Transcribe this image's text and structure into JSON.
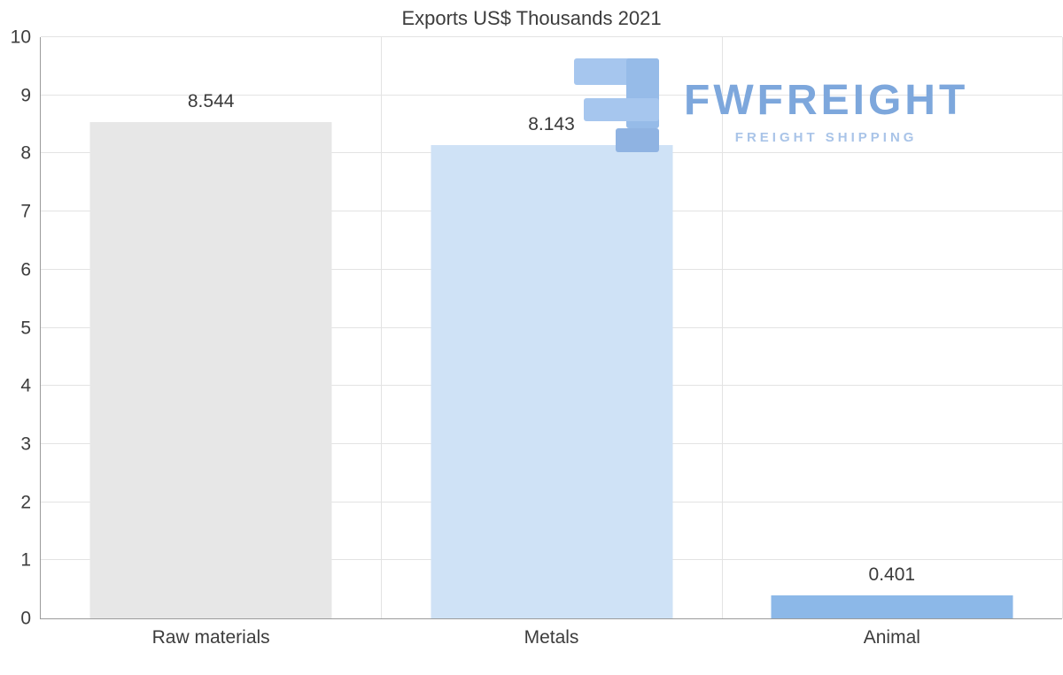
{
  "chart_data": {
    "type": "bar",
    "title": "Exports US$ Thousands 2021",
    "categories": [
      "Raw materials",
      "Metals",
      "Animal"
    ],
    "values": [
      8.544,
      8.143,
      0.401
    ],
    "value_labels": [
      "8.544",
      "8.143",
      "0.401"
    ],
    "bar_colors": [
      "#e7e7e7",
      "#cfe2f6",
      "#8cb8e8"
    ],
    "xlabel": "",
    "ylabel": "",
    "ylim": [
      0,
      10
    ],
    "yticks": [
      0,
      1,
      2,
      3,
      4,
      5,
      6,
      7,
      8,
      9,
      10
    ],
    "grid": true,
    "legend": false
  },
  "watermark": {
    "brand": "FWFREIGHT",
    "tagline": "FREIGHT SHIPPING",
    "logo_icon": "f-logo-icon",
    "brand_color": "#7da7dc",
    "tagline_color": "#a9c4e8",
    "logo_color_light": "#a6c6ee",
    "logo_color_dark": "#8fb3e2"
  },
  "colors": {
    "background": "#ffffff",
    "grid": "#e3e3e3",
    "axis": "#9b9b9b",
    "text": "#3c3c3c"
  }
}
